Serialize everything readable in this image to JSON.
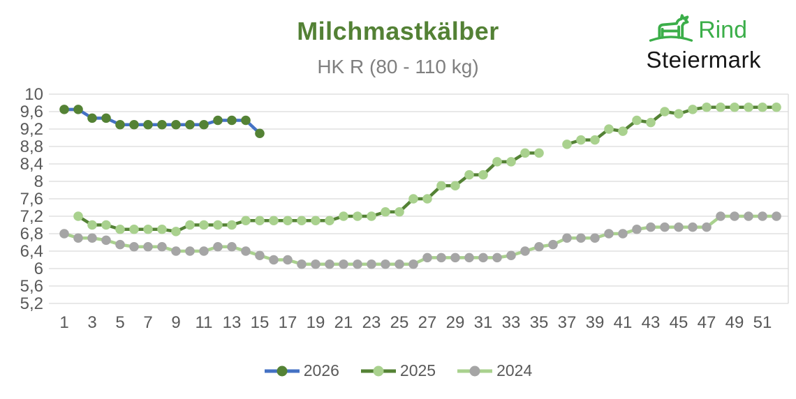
{
  "header": {
    "title": "Milchmastkälber",
    "subtitle": "HK R (80 - 110 kg)",
    "title_color": "#538135",
    "subtitle_color": "#7f7f7f"
  },
  "logo": {
    "brand_top": "Rind",
    "brand_bottom": "Steiermark",
    "icon": "cattle-icon",
    "green": "#3bae49",
    "black": "#161616"
  },
  "chart_data": {
    "type": "line",
    "title": "Milchmastkälber",
    "subtitle": "HK R (80 - 110 kg)",
    "xlabel": "",
    "ylabel": "",
    "x_unit": "calendar week",
    "x_ticks": [
      1,
      3,
      5,
      7,
      9,
      11,
      13,
      15,
      17,
      19,
      21,
      23,
      25,
      27,
      29,
      31,
      33,
      35,
      37,
      39,
      41,
      43,
      45,
      47,
      49,
      51
    ],
    "x_range": [
      1,
      52
    ],
    "ylim": [
      5.2,
      10
    ],
    "y_ticks": [
      10,
      9.6,
      9.2,
      8.8,
      8.4,
      8,
      7.6,
      7.2,
      6.8,
      6.4,
      6,
      5.6,
      5.2
    ],
    "y_tick_labels": [
      "10",
      "9,6",
      "9,2",
      "8,8",
      "8,4",
      "8",
      "7,6",
      "7,2",
      "6,8",
      "6,4",
      "6",
      "5,6",
      "5,2"
    ],
    "grid": "horizontal",
    "gridline_color": "#d9d9d9",
    "tick_label_color": "#595959",
    "legend_position": "bottom",
    "decimal_separator": ",",
    "series": [
      {
        "name": "2026",
        "line_color": "#4472c4",
        "marker_color": "#548235",
        "weeks_start": 1,
        "values": [
          9.65,
          9.65,
          9.45,
          9.45,
          9.3,
          9.3,
          9.3,
          9.3,
          9.3,
          9.3,
          9.3,
          9.4,
          9.4,
          9.4,
          9.1
        ]
      },
      {
        "name": "2025",
        "line_color": "#548235",
        "marker_color": "#a9d18e",
        "weeks_start": 1,
        "values": [
          null,
          7.2,
          7.0,
          7.0,
          6.9,
          6.9,
          6.9,
          6.9,
          6.85,
          7.0,
          7.0,
          7.0,
          7.0,
          7.1,
          7.1,
          7.1,
          7.1,
          7.1,
          7.1,
          7.1,
          7.2,
          7.2,
          7.2,
          7.3,
          7.3,
          7.6,
          7.6,
          7.9,
          7.9,
          8.15,
          8.15,
          8.45,
          8.45,
          8.65,
          8.65,
          null,
          8.85,
          8.95,
          8.95,
          9.2,
          9.15,
          9.4,
          9.35,
          9.6,
          9.55,
          9.65,
          9.7,
          9.7,
          9.7,
          9.7,
          9.7,
          9.7
        ]
      },
      {
        "name": "2024",
        "line_color": "#a9d18e",
        "marker_color": "#a5a5a5",
        "weeks_start": 1,
        "values": [
          6.8,
          6.7,
          6.7,
          6.65,
          6.55,
          6.5,
          6.5,
          6.5,
          6.4,
          6.4,
          6.4,
          6.5,
          6.5,
          6.4,
          6.3,
          6.2,
          6.2,
          6.1,
          6.1,
          6.1,
          6.1,
          6.1,
          6.1,
          6.1,
          6.1,
          6.1,
          6.25,
          6.25,
          6.25,
          6.25,
          6.25,
          6.25,
          6.3,
          6.4,
          6.5,
          6.55,
          6.7,
          6.7,
          6.7,
          6.8,
          6.8,
          6.9,
          6.95,
          6.95,
          6.95,
          6.95,
          6.95,
          7.2,
          7.2,
          7.2,
          7.2,
          7.2
        ]
      }
    ]
  }
}
